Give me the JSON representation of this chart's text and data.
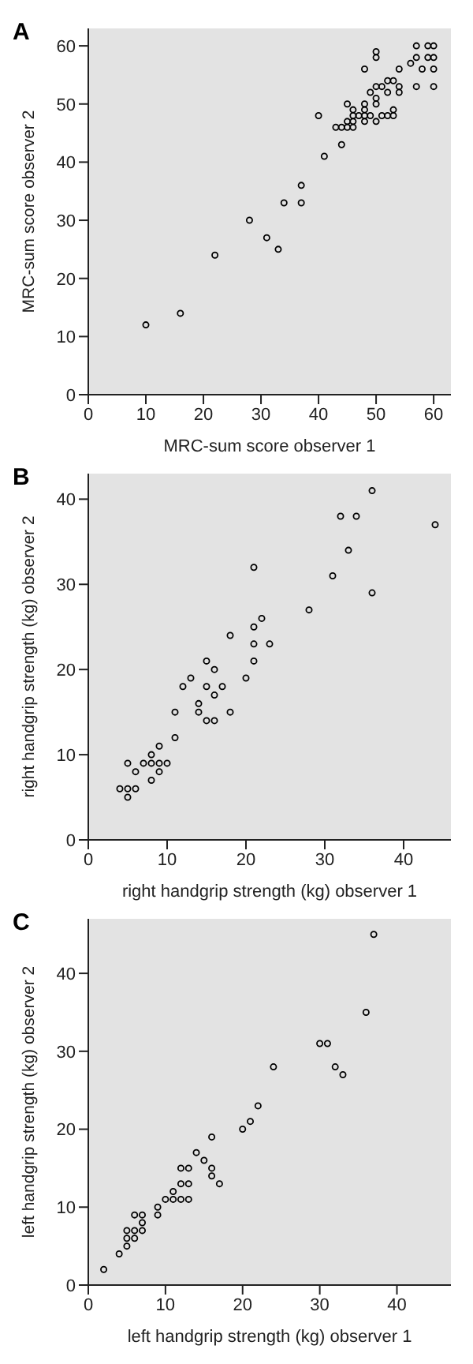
{
  "chart_data": [
    {
      "type": "scatter",
      "title": "A",
      "xlabel": "MRC-sum score observer 1",
      "ylabel": "MRC-sum score observer 2",
      "xlim": [
        0,
        63
      ],
      "ylim": [
        0,
        63
      ],
      "xticks": [
        0,
        10,
        20,
        30,
        40,
        50,
        60
      ],
      "yticks": [
        0,
        10,
        20,
        30,
        40,
        50,
        60
      ],
      "grid": false,
      "legend": false,
      "marker": "circle",
      "series": [
        {
          "color": "#000000",
          "x": [
            10,
            16,
            22,
            28,
            31,
            33,
            34,
            37,
            37,
            40,
            41,
            44,
            43,
            44,
            45,
            46,
            45,
            46,
            45,
            46,
            46,
            47,
            48,
            48,
            48,
            48,
            49,
            50,
            50,
            50,
            49,
            50,
            51,
            52,
            52,
            53,
            54,
            54,
            51,
            52,
            53,
            53,
            48,
            50,
            50,
            54,
            56,
            57,
            57,
            57,
            58,
            59,
            59,
            60,
            60,
            60,
            60
          ],
          "values": [
            12,
            14,
            24,
            30,
            27,
            25,
            33,
            33,
            36,
            48,
            41,
            43,
            46,
            46,
            46,
            46,
            47,
            47,
            50,
            48,
            49,
            48,
            47,
            48,
            49,
            50,
            48,
            47,
            50,
            51,
            52,
            53,
            53,
            52,
            54,
            54,
            52,
            53,
            48,
            48,
            48,
            49,
            56,
            58,
            59,
            56,
            57,
            58,
            60,
            53,
            56,
            58,
            60,
            60,
            58,
            56,
            53
          ]
        }
      ]
    },
    {
      "type": "scatter",
      "title": "B",
      "xlabel": "right handgrip strength (kg) observer 1",
      "ylabel": "right handgrip strength (kg) observer 2",
      "xlim": [
        0,
        46
      ],
      "ylim": [
        0,
        43
      ],
      "xticks": [
        0,
        10,
        20,
        30,
        40
      ],
      "yticks": [
        0,
        10,
        20,
        30,
        40
      ],
      "grid": false,
      "legend": false,
      "marker": "circle",
      "series": [
        {
          "color": "#000000",
          "x": [
            4,
            5,
            6,
            5,
            5,
            6,
            7,
            8,
            8,
            8,
            9,
            9,
            9,
            10,
            11,
            11,
            12,
            13,
            14,
            14,
            15,
            15,
            15,
            16,
            16,
            16,
            17,
            18,
            18,
            20,
            21,
            21,
            21,
            21,
            22,
            23,
            28,
            31,
            32,
            33,
            34,
            36,
            36,
            44
          ],
          "values": [
            6,
            6,
            6,
            5,
            9,
            8,
            9,
            10,
            9,
            7,
            11,
            9,
            8,
            9,
            12,
            15,
            18,
            19,
            16,
            15,
            21,
            18,
            14,
            20,
            17,
            14,
            18,
            15,
            24,
            19,
            21,
            23,
            25,
            32,
            26,
            23,
            27,
            31,
            38,
            34,
            38,
            41,
            29,
            37
          ]
        }
      ]
    },
    {
      "type": "scatter",
      "title": "C",
      "xlabel": "left handgrip strength (kg) observer 1",
      "ylabel": "left handgrip strength (kg) observer 2",
      "xlim": [
        0,
        47
      ],
      "ylim": [
        0,
        47
      ],
      "xticks": [
        0,
        10,
        20,
        30,
        40
      ],
      "yticks": [
        0,
        10,
        20,
        30,
        40
      ],
      "grid": false,
      "legend": false,
      "marker": "circle",
      "series": [
        {
          "color": "#000000",
          "x": [
            2,
            4,
            5,
            5,
            5,
            6,
            6,
            6,
            7,
            7,
            7,
            9,
            9,
            10,
            11,
            11,
            12,
            12,
            12,
            13,
            13,
            13,
            14,
            15,
            16,
            16,
            16,
            17,
            20,
            21,
            22,
            24,
            30,
            31,
            32,
            33,
            36,
            37
          ],
          "values": [
            2,
            4,
            5,
            6,
            7,
            6,
            7,
            9,
            7,
            8,
            9,
            9,
            10,
            11,
            11,
            12,
            11,
            13,
            15,
            11,
            13,
            15,
            17,
            16,
            14,
            15,
            19,
            13,
            20,
            21,
            23,
            28,
            31,
            31,
            28,
            27,
            35,
            45
          ]
        }
      ]
    }
  ]
}
